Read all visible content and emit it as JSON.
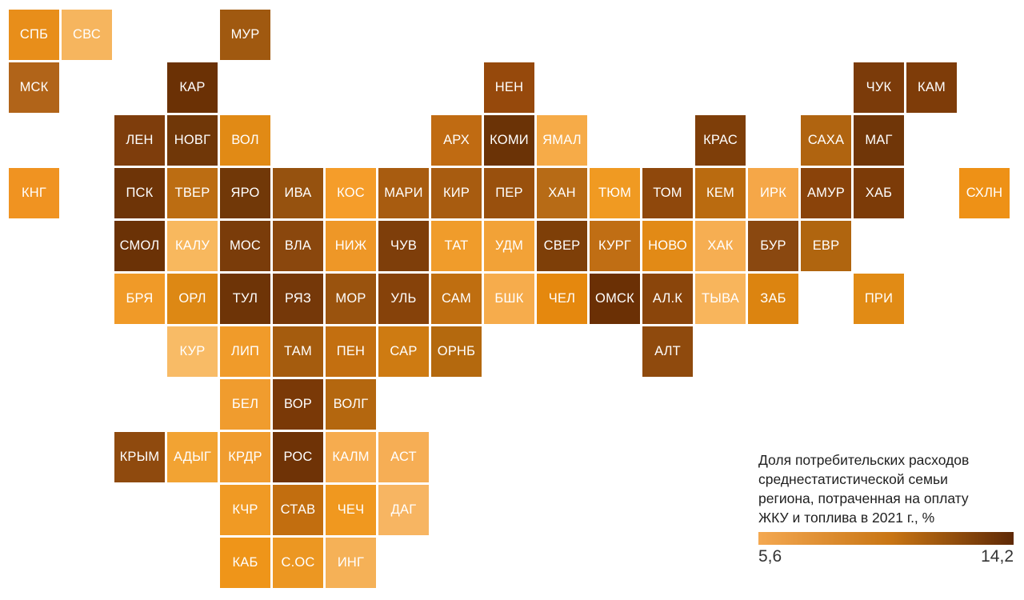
{
  "chart_data": {
    "type": "heatmap",
    "variant": "tile_cartogram_russia",
    "title": "Доля потребительских расходов среднестатистической семьи региона, потраченная на оплату ЖКУ и топлива в 2021 г., %",
    "title_lines": [
      "Доля потребительских расходов",
      "среднестатистической семьи",
      "региона, потраченная на оплату",
      "ЖКУ и топлива в 2021 г., %"
    ],
    "legend": {
      "min": 5.6,
      "max": 14.2,
      "min_label": "5,6",
      "max_label": "14,2",
      "gradient": [
        "#F4A851",
        "#C87514",
        "#5E2906"
      ],
      "position": "bottom-right"
    },
    "value_note": "values estimated from tile color against the 5.6–14.2 legend scale",
    "regions": [
      {
        "code": "СПБ",
        "col": 0,
        "row": 0,
        "color": "#E88E1A",
        "value": 7.8
      },
      {
        "code": "СВС",
        "col": 1,
        "row": 0,
        "color": "#F6B55E",
        "value": 5.9
      },
      {
        "code": "МУР",
        "col": 4,
        "row": 0,
        "color": "#A05910",
        "value": 10.2
      },
      {
        "code": "МСК",
        "col": 0,
        "row": 1,
        "color": "#B16419",
        "value": 9.8
      },
      {
        "code": "КАР",
        "col": 3,
        "row": 1,
        "color": "#6B3105",
        "value": 13.2
      },
      {
        "code": "НЕН",
        "col": 9,
        "row": 1,
        "color": "#96490C",
        "value": 10.9
      },
      {
        "code": "ЧУК",
        "col": 16,
        "row": 1,
        "color": "#7B3B0A",
        "value": 12.1
      },
      {
        "code": "КАМ",
        "col": 17,
        "row": 1,
        "color": "#7E3C09",
        "value": 12.1
      },
      {
        "code": "ЛЕН",
        "col": 2,
        "row": 2,
        "color": "#7E3D0C",
        "value": 12.1
      },
      {
        "code": "НОВГ",
        "col": 3,
        "row": 2,
        "color": "#703708",
        "value": 12.9
      },
      {
        "code": "ВОЛ",
        "col": 4,
        "row": 2,
        "color": "#E18A15",
        "value": 7.9
      },
      {
        "code": "АРХ",
        "col": 8,
        "row": 2,
        "color": "#C06B12",
        "value": 9.3
      },
      {
        "code": "КОМИ",
        "col": 9,
        "row": 2,
        "color": "#6B3306",
        "value": 13.2
      },
      {
        "code": "ЯМАЛ",
        "col": 10,
        "row": 2,
        "color": "#F6AB48",
        "value": 6.4
      },
      {
        "code": "КРАС",
        "col": 13,
        "row": 2,
        "color": "#7E3E09",
        "value": 12.0
      },
      {
        "code": "САХА",
        "col": 15,
        "row": 2,
        "color": "#B06410",
        "value": 9.9
      },
      {
        "code": "МАГ",
        "col": 16,
        "row": 2,
        "color": "#703608",
        "value": 12.9
      },
      {
        "code": "КНГ",
        "col": 0,
        "row": 3,
        "color": "#F09321",
        "value": 7.4
      },
      {
        "code": "ПСК",
        "col": 2,
        "row": 3,
        "color": "#6E3407",
        "value": 13.0
      },
      {
        "code": "ТВЕР",
        "col": 3,
        "row": 3,
        "color": "#BC6D12",
        "value": 9.5
      },
      {
        "code": "ЯРО",
        "col": 4,
        "row": 3,
        "color": "#713808",
        "value": 12.8
      },
      {
        "code": "ИВА",
        "col": 5,
        "row": 3,
        "color": "#96520F",
        "value": 10.7
      },
      {
        "code": "КОС",
        "col": 6,
        "row": 3,
        "color": "#F59D2A",
        "value": 7.0
      },
      {
        "code": "МАРИ",
        "col": 7,
        "row": 3,
        "color": "#A85C10",
        "value": 10.1
      },
      {
        "code": "КИР",
        "col": 8,
        "row": 3,
        "color": "#A85C10",
        "value": 10.1
      },
      {
        "code": "ПЕР",
        "col": 9,
        "row": 3,
        "color": "#99500D",
        "value": 10.8
      },
      {
        "code": "ХАН",
        "col": 10,
        "row": 3,
        "color": "#B76B16",
        "value": 9.6
      },
      {
        "code": "ТЮМ",
        "col": 11,
        "row": 3,
        "color": "#F09A22",
        "value": 7.2
      },
      {
        "code": "ТОМ",
        "col": 12,
        "row": 3,
        "color": "#8F480C",
        "value": 11.1
      },
      {
        "code": "КЕМ",
        "col": 13,
        "row": 3,
        "color": "#BA6B10",
        "value": 9.5
      },
      {
        "code": "ИРК",
        "col": 14,
        "row": 3,
        "color": "#F5A748",
        "value": 6.5
      },
      {
        "code": "АМУР",
        "col": 15,
        "row": 3,
        "color": "#8A430A",
        "value": 11.5
      },
      {
        "code": "ХАБ",
        "col": 16,
        "row": 3,
        "color": "#7C3B08",
        "value": 12.2
      },
      {
        "code": "СХЛН",
        "col": 18,
        "row": 3,
        "color": "#EE9116",
        "value": 7.6
      },
      {
        "code": "СМОЛ",
        "col": 2,
        "row": 4,
        "color": "#6B3206",
        "value": 13.2
      },
      {
        "code": "КАЛУ",
        "col": 3,
        "row": 4,
        "color": "#F8B85E",
        "value": 5.9
      },
      {
        "code": "МОС",
        "col": 4,
        "row": 4,
        "color": "#7A3C0A",
        "value": 12.3
      },
      {
        "code": "ВЛА",
        "col": 5,
        "row": 4,
        "color": "#8A470D",
        "value": 11.3
      },
      {
        "code": "НИЖ",
        "col": 6,
        "row": 4,
        "color": "#EE9727",
        "value": 7.3
      },
      {
        "code": "ЧУВ",
        "col": 7,
        "row": 4,
        "color": "#7E3E0A",
        "value": 12.0
      },
      {
        "code": "ТАТ",
        "col": 8,
        "row": 4,
        "color": "#F09C2B",
        "value": 7.1
      },
      {
        "code": "УДМ",
        "col": 9,
        "row": 4,
        "color": "#F2A237",
        "value": 6.8
      },
      {
        "code": "СВЕР",
        "col": 10,
        "row": 4,
        "color": "#7E3F08",
        "value": 12.0
      },
      {
        "code": "КУРГ",
        "col": 11,
        "row": 4,
        "color": "#C06E14",
        "value": 9.3
      },
      {
        "code": "НОВО",
        "col": 12,
        "row": 4,
        "color": "#E28A16",
        "value": 7.9
      },
      {
        "code": "ХАК",
        "col": 13,
        "row": 4,
        "color": "#F6AE52",
        "value": 6.3
      },
      {
        "code": "БУР",
        "col": 14,
        "row": 4,
        "color": "#8A4810",
        "value": 11.3
      },
      {
        "code": "ЕВР",
        "col": 15,
        "row": 4,
        "color": "#B0650F",
        "value": 9.8
      },
      {
        "code": "БРЯ",
        "col": 2,
        "row": 5,
        "color": "#F09A28",
        "value": 7.2
      },
      {
        "code": "ОРЛ",
        "col": 3,
        "row": 5,
        "color": "#DD8814",
        "value": 8.2
      },
      {
        "code": "ТУЛ",
        "col": 4,
        "row": 5,
        "color": "#6E3407",
        "value": 13.0
      },
      {
        "code": "РЯЗ",
        "col": 5,
        "row": 5,
        "color": "#753809",
        "value": 12.6
      },
      {
        "code": "МОР",
        "col": 6,
        "row": 5,
        "color": "#9A530E",
        "value": 10.6
      },
      {
        "code": "УЛЬ",
        "col": 7,
        "row": 5,
        "color": "#86420A",
        "value": 11.7
      },
      {
        "code": "САМ",
        "col": 8,
        "row": 5,
        "color": "#BF6E10",
        "value": 9.4
      },
      {
        "code": "БШК",
        "col": 9,
        "row": 5,
        "color": "#F6AC4C",
        "value": 6.4
      },
      {
        "code": "ЧЕЛ",
        "col": 10,
        "row": 5,
        "color": "#E5880E",
        "value": 8.0
      },
      {
        "code": "ОМСК",
        "col": 11,
        "row": 5,
        "color": "#6B3005",
        "value": 13.3
      },
      {
        "code": "АЛ.К",
        "col": 12,
        "row": 5,
        "color": "#8A450B",
        "value": 11.4
      },
      {
        "code": "ТЫВА",
        "col": 13,
        "row": 5,
        "color": "#F8B55C",
        "value": 5.9
      },
      {
        "code": "ЗАБ",
        "col": 14,
        "row": 5,
        "color": "#DC8410",
        "value": 8.3
      },
      {
        "code": "ПРИ",
        "col": 16,
        "row": 5,
        "color": "#E18B15",
        "value": 7.9
      },
      {
        "code": "КУР",
        "col": 3,
        "row": 6,
        "color": "#F8BB66",
        "value": 5.8
      },
      {
        "code": "ЛИП",
        "col": 4,
        "row": 6,
        "color": "#F09B2A",
        "value": 7.2
      },
      {
        "code": "ТАМ",
        "col": 5,
        "row": 6,
        "color": "#A55C0E",
        "value": 10.2
      },
      {
        "code": "ПЕН",
        "col": 6,
        "row": 6,
        "color": "#C36F10",
        "value": 9.2
      },
      {
        "code": "САР",
        "col": 7,
        "row": 6,
        "color": "#CE7B12",
        "value": 8.7
      },
      {
        "code": "ОРНБ",
        "col": 8,
        "row": 6,
        "color": "#B4690E",
        "value": 9.7
      },
      {
        "code": "АЛТ",
        "col": 12,
        "row": 6,
        "color": "#8F4A0D",
        "value": 11.0
      },
      {
        "code": "БЕЛ",
        "col": 4,
        "row": 7,
        "color": "#F09C2E",
        "value": 7.1
      },
      {
        "code": "ВОР",
        "col": 5,
        "row": 7,
        "color": "#7A3907",
        "value": 12.4
      },
      {
        "code": "ВОЛГ",
        "col": 6,
        "row": 7,
        "color": "#B4670F",
        "value": 9.7
      },
      {
        "code": "КРЫМ",
        "col": 2,
        "row": 8,
        "color": "#8F4A0E",
        "value": 11.0
      },
      {
        "code": "АДЫГ",
        "col": 3,
        "row": 8,
        "color": "#F2A333",
        "value": 6.7
      },
      {
        "code": "КРДР",
        "col": 4,
        "row": 8,
        "color": "#F09C2F",
        "value": 7.1
      },
      {
        "code": "РОС",
        "col": 5,
        "row": 8,
        "color": "#6F3306",
        "value": 13.0
      },
      {
        "code": "КАЛМ",
        "col": 6,
        "row": 8,
        "color": "#F6AC4F",
        "value": 6.4
      },
      {
        "code": "АСТ",
        "col": 7,
        "row": 8,
        "color": "#F6AE55",
        "value": 6.3
      },
      {
        "code": "КЧР",
        "col": 4,
        "row": 9,
        "color": "#F09A24",
        "value": 7.2
      },
      {
        "code": "СТАВ",
        "col": 5,
        "row": 9,
        "color": "#C26E0F",
        "value": 9.3
      },
      {
        "code": "ЧЕЧ",
        "col": 6,
        "row": 9,
        "color": "#F0981F",
        "value": 7.3
      },
      {
        "code": "ДАГ",
        "col": 7,
        "row": 9,
        "color": "#F7B562",
        "value": 5.9
      },
      {
        "code": "КАБ",
        "col": 4,
        "row": 10,
        "color": "#EF9519",
        "value": 7.5
      },
      {
        "code": "С.ОС",
        "col": 5,
        "row": 10,
        "color": "#EC9722",
        "value": 7.4
      },
      {
        "code": "ИНГ",
        "col": 6,
        "row": 10,
        "color": "#F5B157",
        "value": 6.0
      }
    ]
  }
}
